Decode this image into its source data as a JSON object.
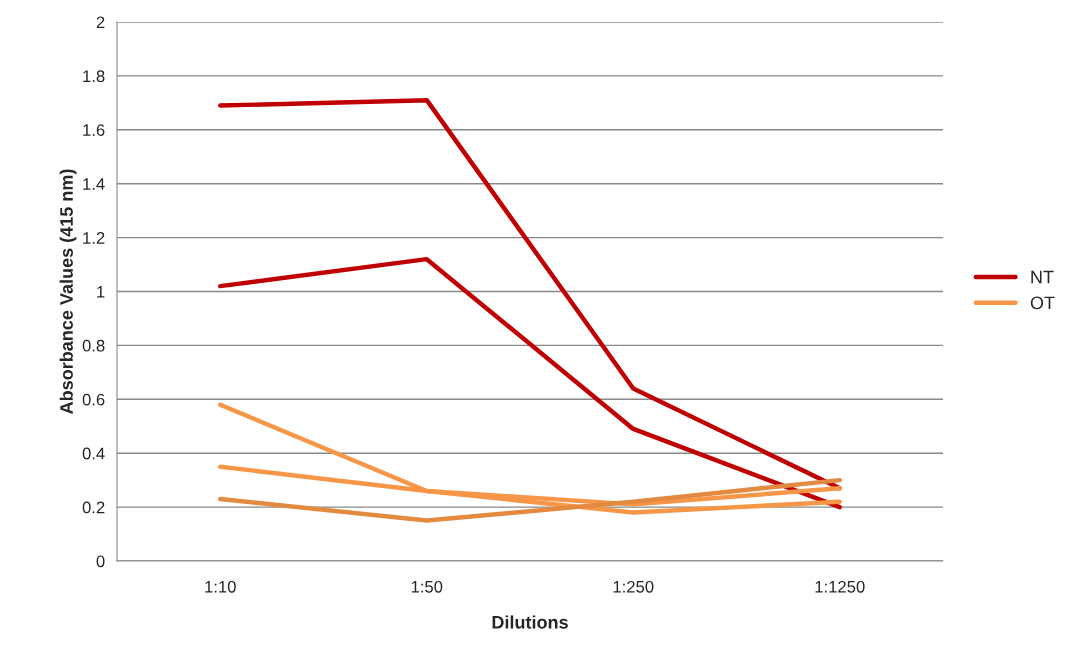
{
  "chart_data": {
    "type": "line",
    "xlabel": "Dilutions",
    "ylabel": "Absorbance Values (415 nm)",
    "categories": [
      "1:10",
      "1:50",
      "1:250",
      "1:1250"
    ],
    "series": [
      {
        "name": "NT",
        "color": "#c00000",
        "values": [
          1.69,
          1.71,
          0.64,
          0.27
        ]
      },
      {
        "color": "#c00000",
        "values": [
          1.02,
          1.12,
          0.49,
          0.2
        ]
      },
      {
        "name": "OT",
        "color": "#f79646",
        "values": [
          0.58,
          0.26,
          0.18,
          0.22
        ]
      },
      {
        "color": "#f79646",
        "values": [
          0.35,
          0.26,
          0.21,
          0.27
        ]
      },
      {
        "color": "#e38a40",
        "values": [
          0.23,
          0.15,
          0.22,
          0.3
        ]
      }
    ],
    "ylim": [
      0,
      2
    ],
    "yticks": [
      0,
      0.2,
      0.4,
      0.6,
      0.8,
      1,
      1.2,
      1.4,
      1.6,
      1.8,
      2
    ],
    "grid": "y",
    "legend": "right",
    "marker": "none",
    "line_style": "solid"
  }
}
